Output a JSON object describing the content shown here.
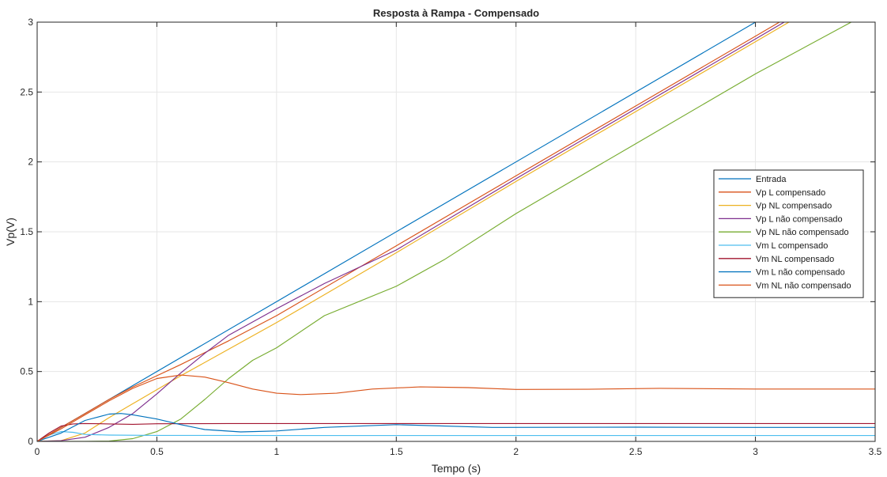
{
  "chart_data": {
    "type": "line",
    "title": "Resposta à Rampa - Compensado",
    "xlabel": "Tempo (s)",
    "ylabel": "Vp(V)",
    "xlim": [
      0,
      3.5
    ],
    "ylim": [
      0,
      3
    ],
    "xticks": [
      0,
      0.5,
      1,
      1.5,
      2,
      2.5,
      3,
      3.5
    ],
    "xtick_labels": [
      "0",
      "0.5",
      "1",
      "1.5",
      "2",
      "2.5",
      "3",
      "3.5"
    ],
    "yticks": [
      0,
      0.5,
      1,
      1.5,
      2,
      2.5,
      3
    ],
    "ytick_labels": [
      "0",
      "0.5",
      "1",
      "1.5",
      "2",
      "2.5",
      "3"
    ],
    "grid": true,
    "legend_position": "right",
    "series": [
      {
        "name": "Entrada",
        "color": "#0072BD",
        "x": [
          0,
          3.5
        ],
        "y": [
          0,
          3.5
        ]
      },
      {
        "name": "Vp L compensado",
        "color": "#D95319",
        "x": [
          0,
          0.1,
          0.2,
          0.3,
          0.4,
          0.5,
          0.6,
          0.8,
          1.0,
          1.5,
          2.0,
          2.5,
          3.0,
          3.5
        ],
        "y": [
          0,
          0.1,
          0.2,
          0.3,
          0.39,
          0.47,
          0.55,
          0.72,
          0.9,
          1.4,
          1.9,
          2.4,
          2.9,
          3.4
        ]
      },
      {
        "name": "Vp NL compensado",
        "color": "#EDB120",
        "x": [
          0,
          0.1,
          0.2,
          0.3,
          0.4,
          0.5,
          0.6,
          0.8,
          1.0,
          1.5,
          2.0,
          2.5,
          3.0,
          3.5
        ],
        "y": [
          0,
          0.005,
          0.06,
          0.17,
          0.27,
          0.37,
          0.47,
          0.66,
          0.85,
          1.35,
          1.86,
          2.36,
          2.86,
          3.36
        ]
      },
      {
        "name": "Vp L não compensado",
        "color": "#7E2F8E",
        "x": [
          0,
          0.1,
          0.2,
          0.3,
          0.4,
          0.5,
          0.6,
          0.7,
          0.8,
          1.0,
          1.2,
          1.5,
          2.0,
          2.5,
          3.0,
          3.5
        ],
        "y": [
          0,
          0.005,
          0.03,
          0.1,
          0.2,
          0.34,
          0.49,
          0.63,
          0.76,
          0.95,
          1.13,
          1.37,
          1.88,
          2.38,
          2.88,
          3.38
        ]
      },
      {
        "name": "Vp NL não compensado",
        "color": "#77AC30",
        "x": [
          0,
          0.2,
          0.3,
          0.4,
          0.5,
          0.6,
          0.7,
          0.8,
          0.9,
          1.0,
          1.2,
          1.5,
          1.7,
          2.0,
          2.5,
          3.0,
          3.4
        ],
        "y": [
          0,
          0,
          0.002,
          0.02,
          0.07,
          0.16,
          0.3,
          0.45,
          0.58,
          0.67,
          0.9,
          1.11,
          1.3,
          1.63,
          2.13,
          2.63,
          3.0
        ]
      },
      {
        "name": "Vm L compensado",
        "color": "#4DBEEE",
        "x": [
          0,
          0.05,
          0.1,
          0.15,
          0.2,
          0.3,
          0.5,
          1.0,
          2.0,
          3.5
        ],
        "y": [
          0,
          0.045,
          0.07,
          0.065,
          0.05,
          0.045,
          0.043,
          0.042,
          0.042,
          0.042
        ]
      },
      {
        "name": "Vm NL compensado",
        "color": "#A2142F",
        "x": [
          0,
          0.05,
          0.1,
          0.15,
          0.2,
          0.3,
          0.4,
          0.5,
          0.8,
          1.0,
          1.5,
          2.0,
          3.0,
          3.5
        ],
        "y": [
          0,
          0.06,
          0.11,
          0.125,
          0.128,
          0.125,
          0.122,
          0.126,
          0.128,
          0.128,
          0.128,
          0.128,
          0.128,
          0.128
        ]
      },
      {
        "name": "Vm L não compensado",
        "color": "#0072BD",
        "x": [
          0,
          0.1,
          0.2,
          0.3,
          0.35,
          0.4,
          0.5,
          0.6,
          0.7,
          0.85,
          1.0,
          1.2,
          1.5,
          1.9,
          2.5,
          3.0,
          3.5
        ],
        "y": [
          0,
          0.06,
          0.15,
          0.195,
          0.2,
          0.19,
          0.16,
          0.12,
          0.085,
          0.068,
          0.075,
          0.1,
          0.12,
          0.1,
          0.102,
          0.1,
          0.1
        ]
      },
      {
        "name": "Vm NL não compensado",
        "color": "#D95319",
        "x": [
          0,
          0.1,
          0.2,
          0.3,
          0.4,
          0.5,
          0.6,
          0.7,
          0.8,
          0.9,
          1.0,
          1.1,
          1.25,
          1.4,
          1.6,
          1.8,
          2.0,
          2.3,
          2.6,
          3.0,
          3.5
        ],
        "y": [
          0,
          0.09,
          0.19,
          0.29,
          0.38,
          0.45,
          0.475,
          0.46,
          0.42,
          0.375,
          0.345,
          0.335,
          0.345,
          0.375,
          0.39,
          0.385,
          0.372,
          0.373,
          0.38,
          0.375,
          0.375
        ]
      }
    ]
  }
}
